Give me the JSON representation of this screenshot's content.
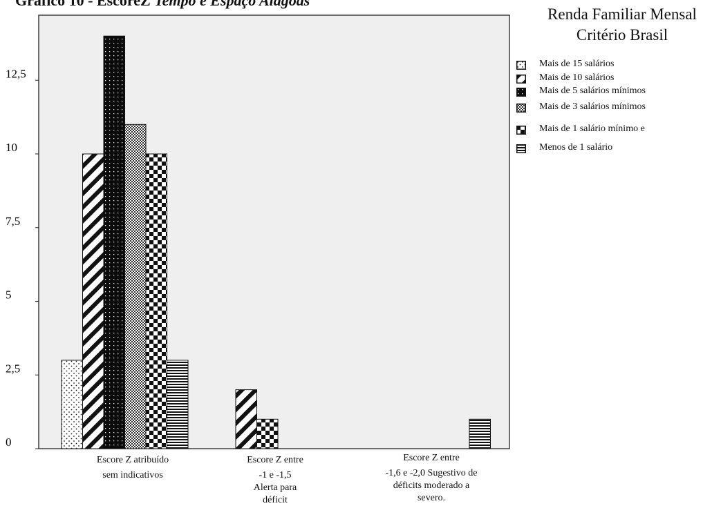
{
  "title_main": "Gráfico 10 - EscoreZ ",
  "title_italic": "Tempo e Espaço Alagoas",
  "legend_title": [
    "Renda Familiar Mensal",
    "Critério Brasil"
  ],
  "legend": [
    {
      "label": "Mais de 15 salários",
      "pattern": "dots"
    },
    {
      "label": "Mais de 10 salários",
      "pattern": "diag"
    },
    {
      "label": "Mais de 5 salários mínimos",
      "pattern": "black"
    },
    {
      "label": "Mais de 3 salários mínimos",
      "pattern": "gray"
    },
    {
      "label": "Mais de 1 salário mínimo e",
      "pattern": "checker"
    },
    {
      "label": "Menos de 1 salário",
      "pattern": "hlines"
    }
  ],
  "chart_data": {
    "type": "bar",
    "categories": [
      [
        "Escore Z atribuído",
        "sem indicativos"
      ],
      [
        "Escore Z entre",
        "-1 e -1,5",
        "Alerta para",
        "déficit"
      ],
      [
        "Escore Z entre",
        "-1,6 e -2,0 Sugestivo de",
        "déficits moderado a",
        "severo."
      ]
    ],
    "yticks": [
      "0",
      "2,5",
      "5",
      "7,5",
      "10",
      "12,5"
    ],
    "ylim": [
      0,
      14
    ],
    "series": [
      {
        "name": "Mais de 15 salários",
        "values": [
          3,
          null,
          null
        ]
      },
      {
        "name": "Mais de 10 salários",
        "values": [
          10,
          2,
          null
        ]
      },
      {
        "name": "Mais de 5 salários mínimos",
        "values": [
          14,
          null,
          null
        ]
      },
      {
        "name": "Mais de 3 salários mínimos",
        "values": [
          11,
          null,
          null
        ]
      },
      {
        "name": "Mais de 1 salário mínimo e",
        "values": [
          10,
          1,
          null
        ]
      },
      {
        "name": "Menos de 1 salário",
        "values": [
          3,
          null,
          1
        ]
      }
    ],
    "grid": false,
    "legend_position": "right"
  }
}
